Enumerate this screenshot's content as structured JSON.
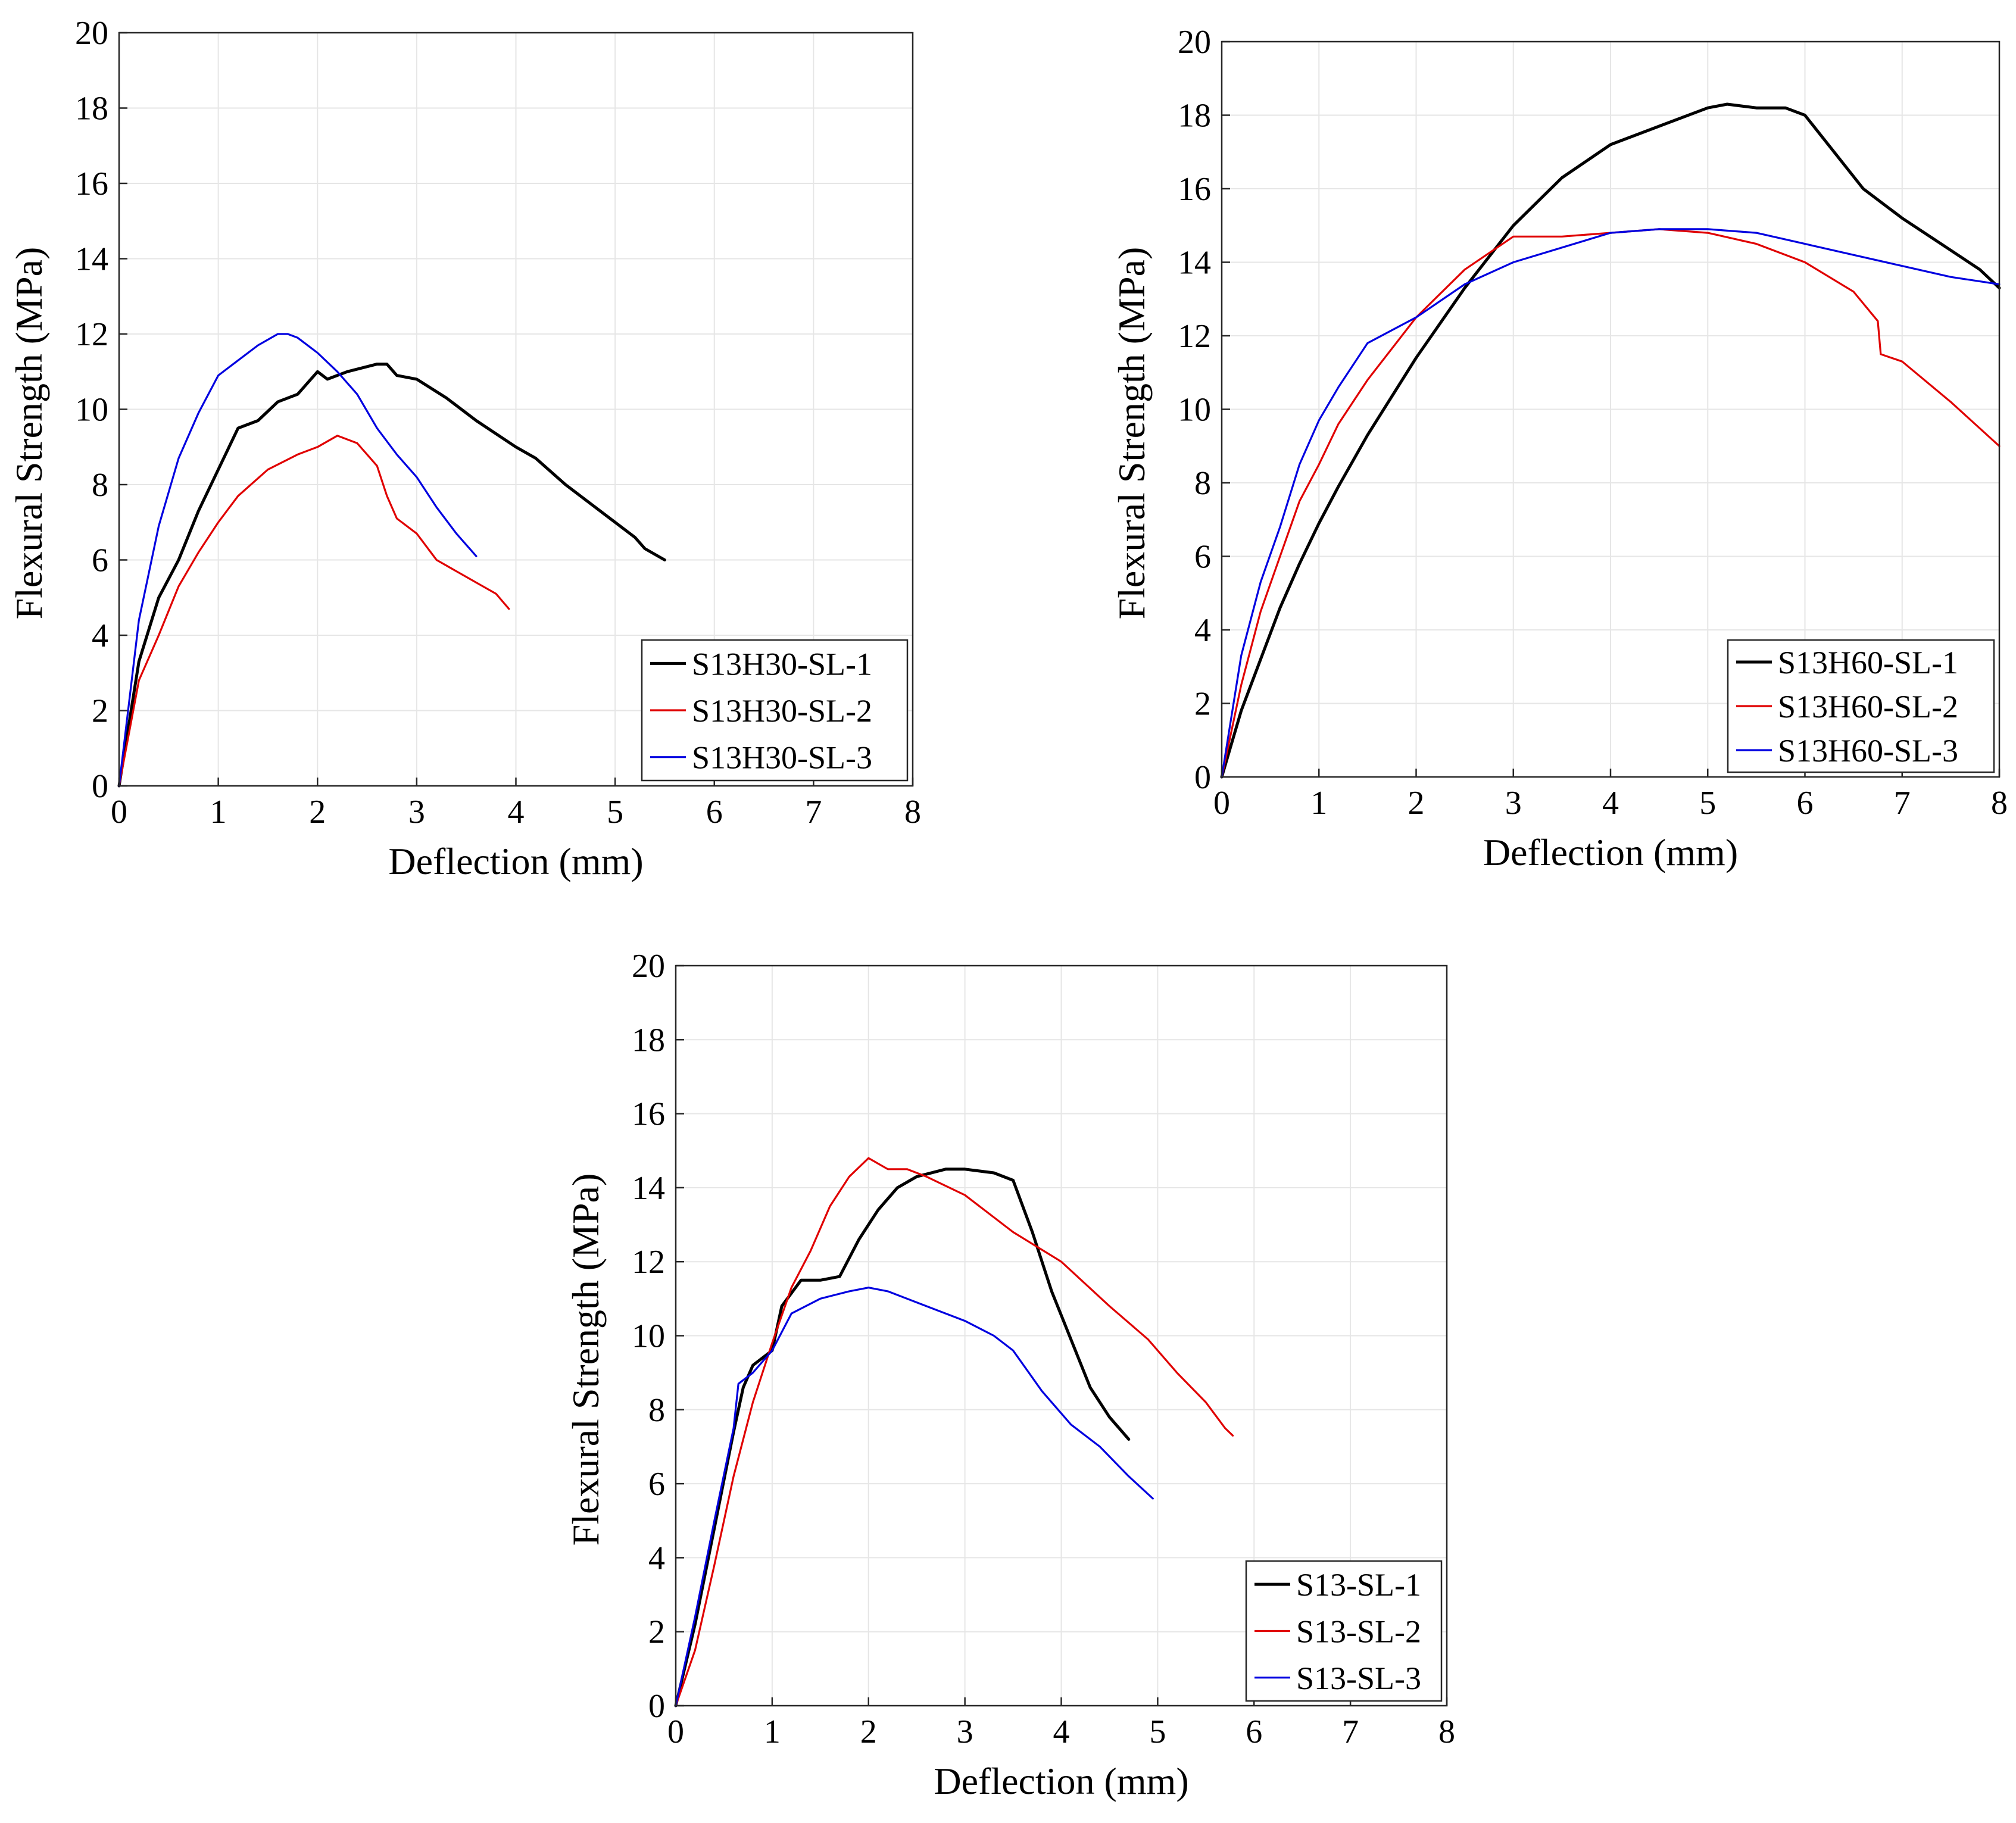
{
  "chart_data": [
    {
      "type": "line",
      "title": "",
      "xlabel": "Deflection (mm)",
      "ylabel": "Flexural Strength (MPa)",
      "xlim": [
        0,
        8
      ],
      "ylim": [
        0,
        20
      ],
      "xticks": [
        "0",
        "1",
        "2",
        "3",
        "4",
        "5",
        "6",
        "7",
        "8"
      ],
      "yticks": [
        "0",
        "2",
        "4",
        "6",
        "8",
        "10",
        "12",
        "14",
        "16",
        "18",
        "20"
      ],
      "grid": true,
      "legend_position": "bottom-right",
      "series": [
        {
          "name": "S13H30-SL-1",
          "color": "#000000",
          "points": [
            [
              0,
              0
            ],
            [
              0.2,
              3.3
            ],
            [
              0.4,
              5.0
            ],
            [
              0.6,
              6.0
            ],
            [
              0.8,
              7.3
            ],
            [
              1.0,
              8.4
            ],
            [
              1.2,
              9.5
            ],
            [
              1.4,
              9.7
            ],
            [
              1.6,
              10.2
            ],
            [
              1.8,
              10.4
            ],
            [
              2.0,
              11.0
            ],
            [
              2.1,
              10.8
            ],
            [
              2.3,
              11.0
            ],
            [
              2.6,
              11.2
            ],
            [
              2.7,
              11.2
            ],
            [
              2.8,
              10.9
            ],
            [
              3.0,
              10.8
            ],
            [
              3.3,
              10.3
            ],
            [
              3.6,
              9.7
            ],
            [
              4.0,
              9.0
            ],
            [
              4.2,
              8.7
            ],
            [
              4.5,
              8.0
            ],
            [
              4.8,
              7.4
            ],
            [
              5.0,
              7.0
            ],
            [
              5.2,
              6.6
            ],
            [
              5.3,
              6.3
            ],
            [
              5.5,
              6.0
            ]
          ]
        },
        {
          "name": "S13H30-SL-2",
          "color": "#e00000",
          "points": [
            [
              0,
              0
            ],
            [
              0.2,
              2.8
            ],
            [
              0.4,
              4.0
            ],
            [
              0.6,
              5.3
            ],
            [
              0.8,
              6.2
            ],
            [
              1.0,
              7.0
            ],
            [
              1.2,
              7.7
            ],
            [
              1.5,
              8.4
            ],
            [
              1.8,
              8.8
            ],
            [
              2.0,
              9.0
            ],
            [
              2.2,
              9.3
            ],
            [
              2.4,
              9.1
            ],
            [
              2.6,
              8.5
            ],
            [
              2.7,
              7.7
            ],
            [
              2.8,
              7.1
            ],
            [
              3.0,
              6.7
            ],
            [
              3.2,
              6.0
            ],
            [
              3.4,
              5.7
            ],
            [
              3.6,
              5.4
            ],
            [
              3.8,
              5.1
            ],
            [
              3.93,
              4.7
            ]
          ]
        },
        {
          "name": "S13H30-SL-3",
          "color": "#0000e0",
          "points": [
            [
              0,
              0
            ],
            [
              0.2,
              4.4
            ],
            [
              0.4,
              6.9
            ],
            [
              0.6,
              8.7
            ],
            [
              0.8,
              9.9
            ],
            [
              1.0,
              10.9
            ],
            [
              1.2,
              11.3
            ],
            [
              1.4,
              11.7
            ],
            [
              1.6,
              12.0
            ],
            [
              1.7,
              12.0
            ],
            [
              1.8,
              11.9
            ],
            [
              2.0,
              11.5
            ],
            [
              2.2,
              11.0
            ],
            [
              2.4,
              10.4
            ],
            [
              2.6,
              9.5
            ],
            [
              2.8,
              8.8
            ],
            [
              3.0,
              8.2
            ],
            [
              3.2,
              7.4
            ],
            [
              3.4,
              6.7
            ],
            [
              3.6,
              6.1
            ]
          ]
        }
      ]
    },
    {
      "type": "line",
      "title": "",
      "xlabel": "Deflection (mm)",
      "ylabel": "Flexural Strength (MPa)",
      "xlim": [
        0,
        8
      ],
      "ylim": [
        0,
        20
      ],
      "xticks": [
        "0",
        "1",
        "2",
        "3",
        "4",
        "5",
        "6",
        "7",
        "8"
      ],
      "yticks": [
        "0",
        "2",
        "4",
        "6",
        "8",
        "10",
        "12",
        "14",
        "16",
        "18",
        "20"
      ],
      "grid": true,
      "legend_position": "bottom-right",
      "series": [
        {
          "name": "S13H60-SL-1",
          "color": "#000000",
          "points": [
            [
              0,
              0
            ],
            [
              0.2,
              1.8
            ],
            [
              0.4,
              3.2
            ],
            [
              0.6,
              4.6
            ],
            [
              0.8,
              5.8
            ],
            [
              1.0,
              6.9
            ],
            [
              1.2,
              7.9
            ],
            [
              1.5,
              9.3
            ],
            [
              2.0,
              11.4
            ],
            [
              2.5,
              13.3
            ],
            [
              3.0,
              15.0
            ],
            [
              3.5,
              16.3
            ],
            [
              4.0,
              17.2
            ],
            [
              4.5,
              17.7
            ],
            [
              5.0,
              18.2
            ],
            [
              5.2,
              18.3
            ],
            [
              5.5,
              18.2
            ],
            [
              5.8,
              18.2
            ],
            [
              6.0,
              18.0
            ],
            [
              6.3,
              17.0
            ],
            [
              6.6,
              16.0
            ],
            [
              7.0,
              15.2
            ],
            [
              7.4,
              14.5
            ],
            [
              7.8,
              13.8
            ],
            [
              8.0,
              13.3
            ]
          ]
        },
        {
          "name": "S13H60-SL-2",
          "color": "#e00000",
          "points": [
            [
              0,
              0
            ],
            [
              0.2,
              2.5
            ],
            [
              0.4,
              4.5
            ],
            [
              0.6,
              6.0
            ],
            [
              0.8,
              7.5
            ],
            [
              1.0,
              8.5
            ],
            [
              1.2,
              9.6
            ],
            [
              1.5,
              10.8
            ],
            [
              2.0,
              12.5
            ],
            [
              2.5,
              13.8
            ],
            [
              3.0,
              14.7
            ],
            [
              3.5,
              14.7
            ],
            [
              4.0,
              14.8
            ],
            [
              4.5,
              14.9
            ],
            [
              5.0,
              14.8
            ],
            [
              5.5,
              14.5
            ],
            [
              6.0,
              14.0
            ],
            [
              6.5,
              13.2
            ],
            [
              6.75,
              12.4
            ],
            [
              6.78,
              11.5
            ],
            [
              7.0,
              11.3
            ],
            [
              7.5,
              10.2
            ],
            [
              8.0,
              9.0
            ]
          ]
        },
        {
          "name": "S13H60-SL-3",
          "color": "#0000e0",
          "points": [
            [
              0,
              0
            ],
            [
              0.2,
              3.3
            ],
            [
              0.4,
              5.3
            ],
            [
              0.6,
              6.8
            ],
            [
              0.8,
              8.5
            ],
            [
              1.0,
              9.7
            ],
            [
              1.2,
              10.6
            ],
            [
              1.5,
              11.8
            ],
            [
              2.0,
              12.5
            ],
            [
              2.5,
              13.4
            ],
            [
              3.0,
              14.0
            ],
            [
              3.5,
              14.4
            ],
            [
              4.0,
              14.8
            ],
            [
              4.5,
              14.9
            ],
            [
              5.0,
              14.9
            ],
            [
              5.5,
              14.8
            ],
            [
              6.0,
              14.5
            ],
            [
              6.5,
              14.2
            ],
            [
              7.0,
              13.9
            ],
            [
              7.5,
              13.6
            ],
            [
              8.0,
              13.4
            ]
          ]
        }
      ]
    },
    {
      "type": "line",
      "title": "",
      "xlabel": "Deflection (mm)",
      "ylabel": "Flexural Strength (MPa)",
      "xlim": [
        0,
        8
      ],
      "ylim": [
        0,
        20
      ],
      "xticks": [
        "0",
        "1",
        "2",
        "3",
        "4",
        "5",
        "6",
        "7",
        "8"
      ],
      "yticks": [
        "0",
        "2",
        "4",
        "6",
        "8",
        "10",
        "12",
        "14",
        "16",
        "18",
        "20"
      ],
      "grid": true,
      "legend_position": "bottom-right",
      "series": [
        {
          "name": "S13-SL-1",
          "color": "#000000",
          "points": [
            [
              0,
              0
            ],
            [
              0.2,
              2.2
            ],
            [
              0.4,
              4.8
            ],
            [
              0.6,
              7.4
            ],
            [
              0.7,
              8.6
            ],
            [
              0.8,
              9.2
            ],
            [
              1.0,
              9.6
            ],
            [
              1.1,
              10.8
            ],
            [
              1.3,
              11.5
            ],
            [
              1.5,
              11.5
            ],
            [
              1.7,
              11.6
            ],
            [
              1.9,
              12.6
            ],
            [
              2.1,
              13.4
            ],
            [
              2.3,
              14.0
            ],
            [
              2.5,
              14.3
            ],
            [
              2.8,
              14.5
            ],
            [
              3.0,
              14.5
            ],
            [
              3.3,
              14.4
            ],
            [
              3.5,
              14.2
            ],
            [
              3.7,
              12.8
            ],
            [
              3.9,
              11.2
            ],
            [
              4.1,
              9.9
            ],
            [
              4.3,
              8.6
            ],
            [
              4.5,
              7.8
            ],
            [
              4.7,
              7.2
            ]
          ]
        },
        {
          "name": "S13-SL-2",
          "color": "#e00000",
          "points": [
            [
              0,
              0
            ],
            [
              0.2,
              1.5
            ],
            [
              0.4,
              3.8
            ],
            [
              0.6,
              6.2
            ],
            [
              0.8,
              8.2
            ],
            [
              1.0,
              9.8
            ],
            [
              1.2,
              11.3
            ],
            [
              1.4,
              12.3
            ],
            [
              1.6,
              13.5
            ],
            [
              1.8,
              14.3
            ],
            [
              2.0,
              14.8
            ],
            [
              2.2,
              14.5
            ],
            [
              2.4,
              14.5
            ],
            [
              2.6,
              14.3
            ],
            [
              3.0,
              13.8
            ],
            [
              3.5,
              12.8
            ],
            [
              4.0,
              12.0
            ],
            [
              4.5,
              10.8
            ],
            [
              4.9,
              9.9
            ],
            [
              5.2,
              9.0
            ],
            [
              5.5,
              8.2
            ],
            [
              5.7,
              7.5
            ],
            [
              5.78,
              7.3
            ]
          ]
        },
        {
          "name": "S13-SL-3",
          "color": "#0000e0",
          "points": [
            [
              0,
              0
            ],
            [
              0.2,
              2.4
            ],
            [
              0.4,
              5.0
            ],
            [
              0.6,
              7.5
            ],
            [
              0.65,
              8.7
            ],
            [
              0.8,
              9.0
            ],
            [
              1.0,
              9.6
            ],
            [
              1.2,
              10.6
            ],
            [
              1.5,
              11.0
            ],
            [
              1.8,
              11.2
            ],
            [
              2.0,
              11.3
            ],
            [
              2.2,
              11.2
            ],
            [
              2.5,
              10.9
            ],
            [
              2.8,
              10.6
            ],
            [
              3.0,
              10.4
            ],
            [
              3.3,
              10.0
            ],
            [
              3.5,
              9.6
            ],
            [
              3.8,
              8.5
            ],
            [
              4.1,
              7.6
            ],
            [
              4.4,
              7.0
            ],
            [
              4.7,
              6.2
            ],
            [
              4.95,
              5.6
            ]
          ]
        }
      ]
    }
  ]
}
